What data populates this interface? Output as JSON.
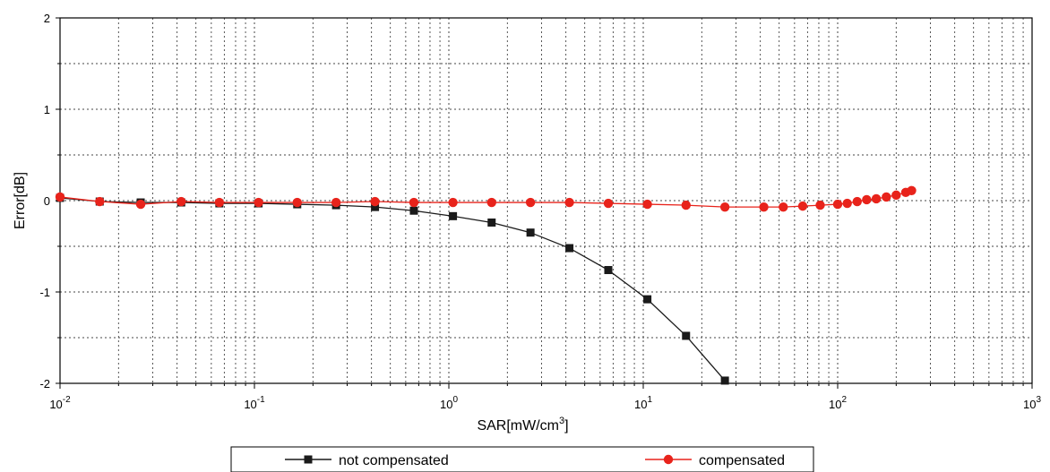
{
  "chart_data": {
    "type": "line",
    "title": "",
    "xlabel": "SAR[mW/cm",
    "xlabel_sup": "3",
    "xlabel_end": "]",
    "ylabel": "Error[dB]",
    "x_scale": "log",
    "xlim": [
      0.01,
      1000
    ],
    "ylim": [
      -2,
      2
    ],
    "y_ticks": [
      -2,
      -1,
      0,
      1,
      2
    ],
    "y_tick_labels": [
      "-2",
      "-1",
      "0",
      "1",
      "2"
    ],
    "x_ticks": [
      0.01,
      0.1,
      1,
      10,
      100,
      1000
    ],
    "x_tick_labels": [
      {
        "base": "10",
        "exp": "-2"
      },
      {
        "base": "10",
        "exp": "-1"
      },
      {
        "base": "10",
        "exp": "0"
      },
      {
        "base": "10",
        "exp": "1"
      },
      {
        "base": "10",
        "exp": "2"
      },
      {
        "base": "10",
        "exp": "3"
      }
    ],
    "grid": true,
    "legend_position": "bottom",
    "series": [
      {
        "name": "not compensated",
        "color": "#1a1a1a",
        "marker": "square",
        "x": [
          0.01,
          0.016,
          0.026,
          0.042,
          0.066,
          0.105,
          0.166,
          0.263,
          0.417,
          0.661,
          1.05,
          1.66,
          2.63,
          4.17,
          6.61,
          10.5,
          16.6,
          26.3
        ],
        "y": [
          0.03,
          -0.01,
          -0.02,
          -0.02,
          -0.03,
          -0.03,
          -0.04,
          -0.05,
          -0.07,
          -0.11,
          -0.17,
          -0.24,
          -0.35,
          -0.52,
          -0.76,
          -1.08,
          -1.48,
          -1.97
        ]
      },
      {
        "name": "compensated",
        "color": "#e8231b",
        "marker": "circle",
        "x": [
          0.01,
          0.016,
          0.026,
          0.042,
          0.066,
          0.105,
          0.166,
          0.263,
          0.417,
          0.661,
          1.05,
          1.66,
          2.63,
          4.17,
          6.61,
          10.5,
          16.6,
          26.3,
          41.7,
          52.5,
          66.1,
          81.3,
          100,
          112,
          126,
          141,
          158,
          178,
          200,
          224,
          240
        ],
        "y": [
          0.04,
          -0.01,
          -0.04,
          -0.01,
          -0.02,
          -0.02,
          -0.02,
          -0.02,
          -0.01,
          -0.02,
          -0.02,
          -0.02,
          -0.02,
          -0.02,
          -0.03,
          -0.04,
          -0.05,
          -0.07,
          -0.07,
          -0.07,
          -0.06,
          -0.05,
          -0.04,
          -0.03,
          -0.01,
          0.01,
          0.02,
          0.04,
          0.06,
          0.09,
          0.11
        ]
      }
    ]
  }
}
